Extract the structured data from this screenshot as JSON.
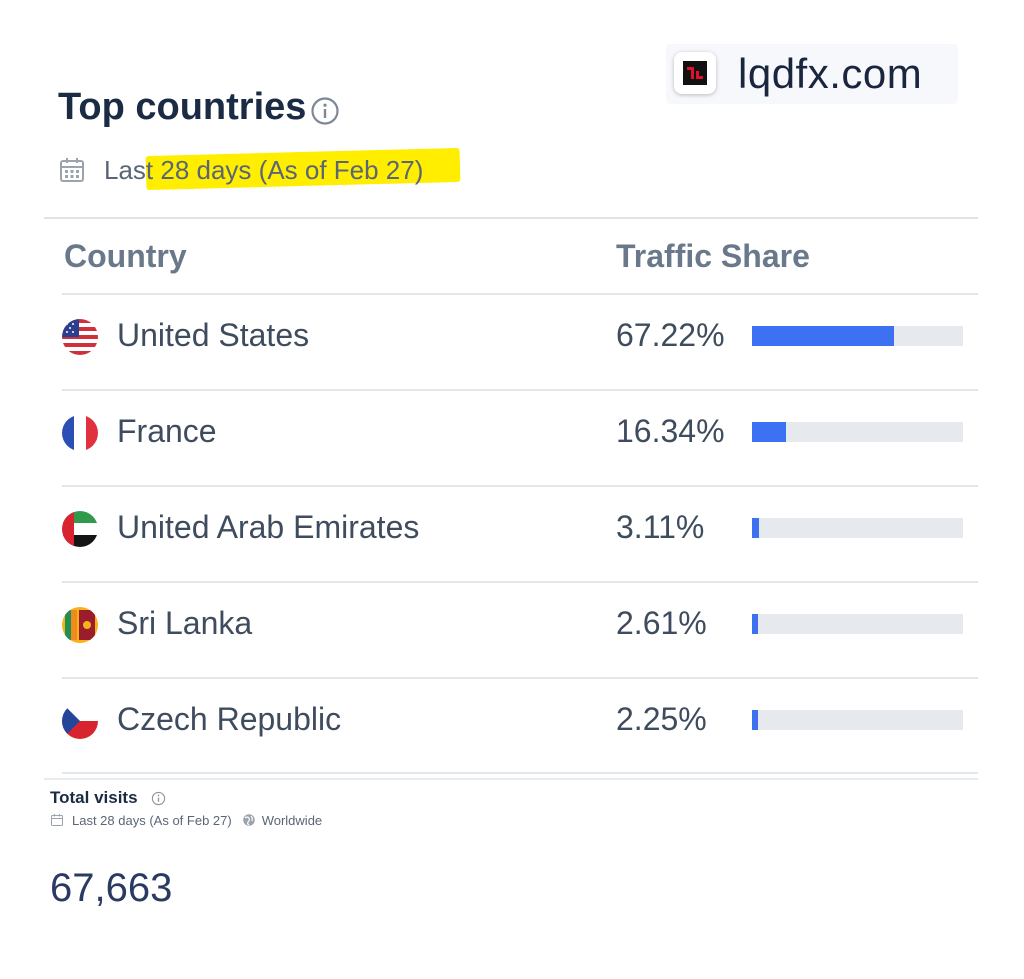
{
  "watermark": {
    "text": "lqdfx.com",
    "icon": "lqdfx-logo-icon"
  },
  "header": {
    "title": "Top countries",
    "date_range": "Last 28 days (As of Feb 27)",
    "highlight_color": "#ffee00"
  },
  "table": {
    "columns": {
      "country": "Country",
      "share": "Traffic Share"
    },
    "bar_color": "#3d71f2",
    "rows": [
      {
        "country": "United States",
        "share": "67.22%",
        "fraction": 0.6722,
        "flag": "us-flag-icon"
      },
      {
        "country": "France",
        "share": "16.34%",
        "fraction": 0.1634,
        "flag": "fr-flag-icon"
      },
      {
        "country": "United Arab Emirates",
        "share": "3.11%",
        "fraction": 0.0311,
        "flag": "ae-flag-icon"
      },
      {
        "country": "Sri Lanka",
        "share": "2.61%",
        "fraction": 0.0261,
        "flag": "lk-flag-icon"
      },
      {
        "country": "Czech Republic",
        "share": "2.25%",
        "fraction": 0.0225,
        "flag": "cz-flag-icon"
      }
    ]
  },
  "total_visits": {
    "title": "Total visits",
    "date_range": "Last 28 days (As of Feb 27)",
    "region": "Worldwide",
    "value": "67,663"
  }
}
